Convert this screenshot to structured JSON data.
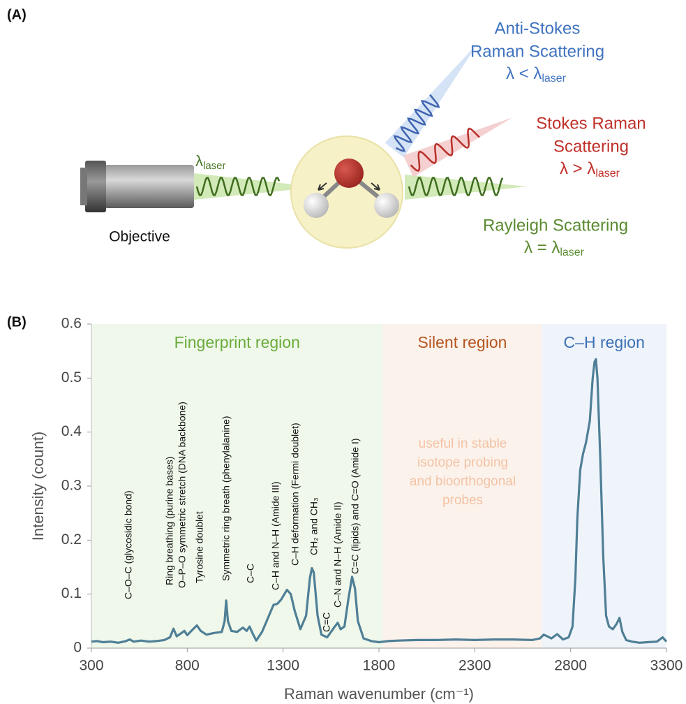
{
  "panel_a": {
    "label": "(A)",
    "objective": "Objective",
    "laser": {
      "symbol": "λ",
      "sub": "laser"
    },
    "anti_stokes": {
      "lines": [
        "Anti-Stokes",
        "Raman Scattering"
      ],
      "formula": "λ < λ",
      "sub": "laser"
    },
    "stokes": {
      "lines": [
        "Stokes Raman",
        "Scattering"
      ],
      "formula": "λ > λ",
      "sub": "laser"
    },
    "rayleigh": {
      "lines": [
        "Rayleigh Scattering"
      ],
      "formula": "λ = λ",
      "sub": "laser"
    }
  },
  "chart_data": {
    "type": "line",
    "panel_label": "(B)",
    "xlabel": "Raman wavenumber (cm⁻¹)",
    "ylabel": "Intensity (count)",
    "xlim": [
      300,
      3300
    ],
    "xticks": [
      300,
      800,
      1300,
      1800,
      2300,
      2800,
      3300
    ],
    "ylim": [
      0,
      0.6
    ],
    "yticks": [
      0,
      0.1,
      0.2,
      0.3,
      0.4,
      0.5,
      0.6
    ],
    "color": "#4f7f96",
    "regions": [
      {
        "label": "Fingerprint region",
        "range": [
          300,
          1820
        ],
        "color": "#6aab3c",
        "fill": "#eff8ea"
      },
      {
        "label": "Silent region",
        "range": [
          1820,
          2650
        ],
        "color": "#b4561f",
        "fill": "#fcf2ec"
      },
      {
        "label": "C–H region",
        "range": [
          2650,
          3300
        ],
        "color": "#3c70b5",
        "fill": "#eff4fb"
      }
    ],
    "note_lines": [
      "useful in stable",
      "isotope probing",
      "and bioorthogonal",
      "probes"
    ],
    "annotations": [
      "C–O–C (glycosidic bond)",
      "Ring breathing (purine bases)",
      "O–P–O symmetric stretch (DNA backbone)",
      "Tyrosine doublet",
      "Symmetric ring breath (phenylalanine)",
      "C–C",
      "C–H and N–H (Amide III)",
      "C–H deformation (Fermi doublet)",
      "CH₂ and CH₃",
      "C=C",
      "C–N and N–H (Amide II)",
      "C=C (lipids) and C=O (Amide I)"
    ],
    "x": [
      300,
      330,
      360,
      400,
      440,
      480,
      500,
      520,
      560,
      600,
      640,
      680,
      710,
      728,
      745,
      770,
      785,
      800,
      830,
      850,
      870,
      900,
      940,
      980,
      995,
      1003,
      1012,
      1030,
      1060,
      1090,
      1110,
      1125,
      1140,
      1160,
      1190,
      1220,
      1250,
      1270,
      1290,
      1320,
      1340,
      1360,
      1390,
      1420,
      1440,
      1450,
      1460,
      1480,
      1500,
      1530,
      1550,
      1570,
      1585,
      1600,
      1620,
      1640,
      1660,
      1675,
      1690,
      1720,
      1760,
      1800,
      1850,
      1900,
      2000,
      2100,
      2200,
      2300,
      2400,
      2500,
      2600,
      2640,
      2660,
      2700,
      2730,
      2760,
      2790,
      2810,
      2825,
      2835,
      2850,
      2865,
      2880,
      2900,
      2915,
      2925,
      2932,
      2940,
      2955,
      2970,
      2985,
      3000,
      3020,
      3040,
      3055,
      3070,
      3090,
      3120,
      3160,
      3200,
      3250,
      3280,
      3300
    ],
    "values": [
      0.012,
      0.013,
      0.011,
      0.012,
      0.01,
      0.013,
      0.016,
      0.012,
      0.014,
      0.012,
      0.013,
      0.015,
      0.02,
      0.036,
      0.022,
      0.028,
      0.032,
      0.024,
      0.035,
      0.042,
      0.032,
      0.025,
      0.028,
      0.03,
      0.05,
      0.088,
      0.05,
      0.032,
      0.03,
      0.038,
      0.032,
      0.04,
      0.028,
      0.014,
      0.03,
      0.055,
      0.08,
      0.082,
      0.09,
      0.108,
      0.1,
      0.07,
      0.035,
      0.06,
      0.13,
      0.148,
      0.14,
      0.06,
      0.025,
      0.02,
      0.03,
      0.04,
      0.047,
      0.035,
      0.04,
      0.09,
      0.132,
      0.11,
      0.05,
      0.018,
      0.013,
      0.011,
      0.013,
      0.014,
      0.015,
      0.015,
      0.016,
      0.015,
      0.016,
      0.016,
      0.015,
      0.018,
      0.025,
      0.018,
      0.026,
      0.016,
      0.02,
      0.04,
      0.13,
      0.24,
      0.33,
      0.36,
      0.38,
      0.42,
      0.5,
      0.53,
      0.535,
      0.5,
      0.35,
      0.17,
      0.06,
      0.04,
      0.035,
      0.045,
      0.056,
      0.03,
      0.015,
      0.012,
      0.01,
      0.011,
      0.012,
      0.02,
      0.012
    ]
  }
}
